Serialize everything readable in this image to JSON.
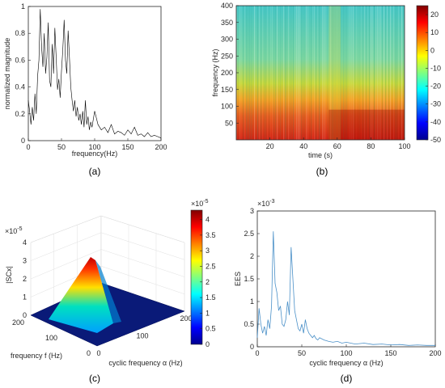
{
  "chart_data": [
    {
      "panel": "a",
      "caption": "(a)",
      "type": "line",
      "xlabel": "frequency(Hz)",
      "ylabel": "normalized magnitude",
      "xlim": [
        0,
        200
      ],
      "ylim": [
        0,
        1
      ],
      "xticks": [
        "0",
        "50",
        "100",
        "150",
        "200"
      ],
      "yticks": [
        "0",
        "0.2",
        "0.4",
        "0.6",
        "0.8",
        "1"
      ],
      "color": "#000000",
      "series": [
        {
          "x": [
            0,
            2,
            4,
            6,
            8,
            10,
            12,
            14,
            16,
            18,
            20,
            22,
            24,
            26,
            28,
            30,
            32,
            34,
            36,
            38,
            40,
            42,
            44,
            46,
            48,
            50,
            52,
            54,
            56,
            58,
            60,
            62,
            64,
            66,
            68,
            70,
            72,
            74,
            76,
            78,
            80,
            82,
            84,
            86,
            88,
            90,
            92,
            94,
            96,
            98,
            100,
            105,
            110,
            115,
            120,
            125,
            130,
            135,
            140,
            145,
            150,
            155,
            160,
            165,
            170,
            175,
            180,
            185,
            190,
            195,
            200
          ],
          "y": [
            0.3,
            0.22,
            0.12,
            0.25,
            0.15,
            0.35,
            0.2,
            0.48,
            0.6,
            0.98,
            0.7,
            0.55,
            0.8,
            0.5,
            0.62,
            0.88,
            0.45,
            0.4,
            0.72,
            0.5,
            0.84,
            0.62,
            0.38,
            0.46,
            0.32,
            0.52,
            0.68,
            0.9,
            0.6,
            0.5,
            0.82,
            0.62,
            0.4,
            0.3,
            0.22,
            0.3,
            0.18,
            0.25,
            0.15,
            0.2,
            0.12,
            0.22,
            0.1,
            0.3,
            0.12,
            0.18,
            0.08,
            0.14,
            0.1,
            0.16,
            0.22,
            0.12,
            0.08,
            0.1,
            0.06,
            0.12,
            0.05,
            0.07,
            0.06,
            0.04,
            0.08,
            0.05,
            0.1,
            0.04,
            0.05,
            0.03,
            0.06,
            0.03,
            0.04,
            0.03,
            0.02
          ]
        }
      ]
    },
    {
      "panel": "b",
      "caption": "(b)",
      "type": "heatmap",
      "xlabel": "time (s)",
      "ylabel": "frequency (Hz)",
      "xlim": [
        0,
        100
      ],
      "ylim": [
        0,
        400
      ],
      "xticks": [
        "20",
        "40",
        "60",
        "80",
        "100"
      ],
      "yticks": [
        "50",
        "100",
        "150",
        "200",
        "250",
        "300",
        "350",
        "400"
      ],
      "colorbar": {
        "range": [
          -50,
          25
        ],
        "ticks": [
          "20",
          "10",
          "0",
          "-10",
          "-20",
          "-30",
          "-40",
          "-50"
        ]
      },
      "colormap": "jet",
      "description_levels": {
        "0-100Hz": "red/orange",
        "100-170Hz": "orange/yellow",
        "170-400Hz": "cyan/green"
      }
    },
    {
      "panel": "c",
      "caption": "(c)",
      "type": "surface3d",
      "xlabel": "cyclic frequency α (Hz)",
      "ylabel": "frequency f (Hz)",
      "zlabel": "|SCx|",
      "z_exponent": "×10",
      "z_exponent_power": "-5",
      "zticks": [
        "0",
        "1",
        "2",
        "3",
        "4"
      ],
      "xticks": [
        "0",
        "100",
        "200"
      ],
      "yticks": [
        "0",
        "100",
        "200"
      ],
      "colorbar": {
        "range": [
          0,
          4.3
        ],
        "exponent": "×10",
        "exponent_power": "-5",
        "ticks": [
          "4",
          "3.5",
          "3",
          "2.5",
          "2",
          "1.5",
          "1",
          "0.5",
          "0"
        ]
      },
      "colormap": "jet",
      "peak": {
        "alpha": 0,
        "f": 20,
        "value": 4.2
      }
    },
    {
      "panel": "d",
      "caption": "(d)",
      "type": "line",
      "xlabel": "cyclic frequency α (Hz)",
      "ylabel": "EES",
      "y_exponent": "×10",
      "y_exponent_power": "-3",
      "xlim": [
        0,
        200
      ],
      "ylim": [
        0,
        3
      ],
      "xticks": [
        "0",
        "50",
        "100",
        "150",
        "200"
      ],
      "yticks": [
        "0",
        "0.5",
        "1",
        "1.5",
        "2",
        "2.5",
        "3"
      ],
      "color": "#4a90c8",
      "series": [
        {
          "x": [
            0,
            2,
            4,
            6,
            8,
            10,
            12,
            14,
            16,
            18,
            20,
            22,
            24,
            26,
            28,
            30,
            32,
            34,
            36,
            38,
            40,
            42,
            44,
            46,
            48,
            50,
            52,
            54,
            56,
            58,
            60,
            62,
            64,
            66,
            68,
            70,
            75,
            80,
            85,
            90,
            95,
            100,
            110,
            120,
            130,
            140,
            150,
            160,
            170,
            180,
            190,
            200
          ],
          "y": [
            0.2,
            0.85,
            0.5,
            0.3,
            0.45,
            0.25,
            0.6,
            0.4,
            0.9,
            2.55,
            1.4,
            1.2,
            0.8,
            0.9,
            0.5,
            0.45,
            0.6,
            1.0,
            0.7,
            2.2,
            1.5,
            0.8,
            0.6,
            0.4,
            0.35,
            0.5,
            0.3,
            0.6,
            0.4,
            0.3,
            0.25,
            0.2,
            0.25,
            0.18,
            0.15,
            0.2,
            0.15,
            0.12,
            0.1,
            0.12,
            0.08,
            0.1,
            0.06,
            0.08,
            0.05,
            0.06,
            0.04,
            0.05,
            0.03,
            0.04,
            0.03,
            0.03
          ]
        }
      ]
    }
  ]
}
